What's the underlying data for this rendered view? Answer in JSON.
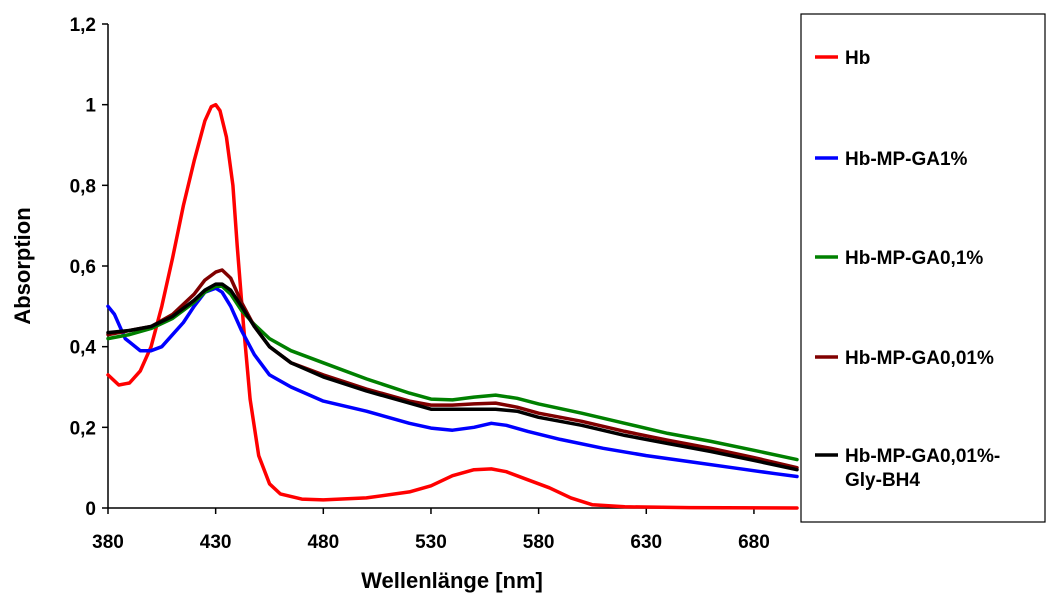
{
  "chart_data": {
    "type": "line",
    "xlabel": "Wellenlänge [nm]",
    "ylabel": "Absorption",
    "xlim": [
      380,
      700
    ],
    "ylim": [
      0,
      1.2
    ],
    "x_ticks": [
      380,
      430,
      480,
      530,
      580,
      630,
      680
    ],
    "y_ticks": [
      0,
      0.2,
      0.4,
      0.6,
      0.8,
      1,
      1.2
    ],
    "y_tick_labels": [
      "0",
      "0,2",
      "0,4",
      "0,6",
      "0,8",
      "1",
      "1,2"
    ],
    "grid": false,
    "legend": "right",
    "series": [
      {
        "name": "Hb",
        "color": "#ff0000",
        "points": [
          [
            380,
            0.33
          ],
          [
            385,
            0.305
          ],
          [
            390,
            0.31
          ],
          [
            395,
            0.34
          ],
          [
            400,
            0.4
          ],
          [
            405,
            0.5
          ],
          [
            410,
            0.62
          ],
          [
            415,
            0.75
          ],
          [
            420,
            0.86
          ],
          [
            425,
            0.96
          ],
          [
            428,
            0.995
          ],
          [
            430,
            1.0
          ],
          [
            432,
            0.985
          ],
          [
            435,
            0.92
          ],
          [
            438,
            0.8
          ],
          [
            440,
            0.65
          ],
          [
            443,
            0.45
          ],
          [
            446,
            0.27
          ],
          [
            450,
            0.13
          ],
          [
            455,
            0.06
          ],
          [
            460,
            0.035
          ],
          [
            470,
            0.022
          ],
          [
            480,
            0.02
          ],
          [
            500,
            0.025
          ],
          [
            520,
            0.04
          ],
          [
            530,
            0.055
          ],
          [
            540,
            0.08
          ],
          [
            550,
            0.095
          ],
          [
            558,
            0.097
          ],
          [
            565,
            0.09
          ],
          [
            575,
            0.07
          ],
          [
            585,
            0.05
          ],
          [
            595,
            0.025
          ],
          [
            605,
            0.008
          ],
          [
            620,
            0.003
          ],
          [
            650,
            0.001
          ],
          [
            700,
            0.0
          ]
        ]
      },
      {
        "name": "Hb-MP-GA1%",
        "color": "#0000ff",
        "points": [
          [
            380,
            0.5
          ],
          [
            383,
            0.48
          ],
          [
            388,
            0.42
          ],
          [
            395,
            0.39
          ],
          [
            400,
            0.39
          ],
          [
            405,
            0.4
          ],
          [
            410,
            0.43
          ],
          [
            415,
            0.46
          ],
          [
            420,
            0.5
          ],
          [
            425,
            0.535
          ],
          [
            430,
            0.545
          ],
          [
            433,
            0.535
          ],
          [
            437,
            0.5
          ],
          [
            442,
            0.44
          ],
          [
            448,
            0.38
          ],
          [
            455,
            0.33
          ],
          [
            465,
            0.3
          ],
          [
            480,
            0.265
          ],
          [
            500,
            0.24
          ],
          [
            520,
            0.21
          ],
          [
            530,
            0.198
          ],
          [
            540,
            0.193
          ],
          [
            550,
            0.2
          ],
          [
            558,
            0.21
          ],
          [
            565,
            0.205
          ],
          [
            575,
            0.19
          ],
          [
            590,
            0.17
          ],
          [
            610,
            0.148
          ],
          [
            630,
            0.13
          ],
          [
            650,
            0.115
          ],
          [
            670,
            0.1
          ],
          [
            690,
            0.085
          ],
          [
            700,
            0.078
          ]
        ]
      },
      {
        "name": "Hb-MP-GA0,1%",
        "color": "#008000",
        "points": [
          [
            380,
            0.42
          ],
          [
            390,
            0.43
          ],
          [
            400,
            0.445
          ],
          [
            410,
            0.47
          ],
          [
            420,
            0.51
          ],
          [
            425,
            0.535
          ],
          [
            430,
            0.55
          ],
          [
            433,
            0.55
          ],
          [
            437,
            0.53
          ],
          [
            442,
            0.49
          ],
          [
            448,
            0.455
          ],
          [
            455,
            0.42
          ],
          [
            465,
            0.39
          ],
          [
            480,
            0.36
          ],
          [
            500,
            0.32
          ],
          [
            520,
            0.285
          ],
          [
            530,
            0.27
          ],
          [
            540,
            0.268
          ],
          [
            550,
            0.275
          ],
          [
            560,
            0.28
          ],
          [
            570,
            0.272
          ],
          [
            580,
            0.258
          ],
          [
            600,
            0.235
          ],
          [
            620,
            0.21
          ],
          [
            640,
            0.185
          ],
          [
            660,
            0.165
          ],
          [
            680,
            0.143
          ],
          [
            700,
            0.12
          ]
        ]
      },
      {
        "name": "Hb-MP-GA0,01%",
        "color": "#800000",
        "points": [
          [
            380,
            0.43
          ],
          [
            390,
            0.44
          ],
          [
            400,
            0.45
          ],
          [
            410,
            0.48
          ],
          [
            420,
            0.53
          ],
          [
            425,
            0.565
          ],
          [
            430,
            0.585
          ],
          [
            433,
            0.59
          ],
          [
            437,
            0.57
          ],
          [
            442,
            0.51
          ],
          [
            448,
            0.45
          ],
          [
            455,
            0.4
          ],
          [
            465,
            0.36
          ],
          [
            480,
            0.33
          ],
          [
            500,
            0.295
          ],
          [
            520,
            0.265
          ],
          [
            530,
            0.255
          ],
          [
            540,
            0.255
          ],
          [
            550,
            0.258
          ],
          [
            560,
            0.26
          ],
          [
            570,
            0.25
          ],
          [
            580,
            0.235
          ],
          [
            600,
            0.215
          ],
          [
            620,
            0.19
          ],
          [
            640,
            0.168
          ],
          [
            660,
            0.148
          ],
          [
            680,
            0.125
          ],
          [
            700,
            0.1
          ]
        ]
      },
      {
        "name": "Hb-MP-GA0,01%-Gly-BH4",
        "name_lines": [
          "Hb-MP-GA0,01%-",
          "Gly-BH4"
        ],
        "color": "#000000",
        "points": [
          [
            380,
            0.435
          ],
          [
            390,
            0.44
          ],
          [
            400,
            0.45
          ],
          [
            410,
            0.475
          ],
          [
            420,
            0.515
          ],
          [
            425,
            0.54
          ],
          [
            430,
            0.555
          ],
          [
            433,
            0.555
          ],
          [
            437,
            0.54
          ],
          [
            442,
            0.5
          ],
          [
            448,
            0.45
          ],
          [
            455,
            0.4
          ],
          [
            465,
            0.36
          ],
          [
            480,
            0.325
          ],
          [
            500,
            0.29
          ],
          [
            520,
            0.26
          ],
          [
            530,
            0.245
          ],
          [
            540,
            0.245
          ],
          [
            550,
            0.245
          ],
          [
            560,
            0.245
          ],
          [
            570,
            0.24
          ],
          [
            580,
            0.225
          ],
          [
            600,
            0.205
          ],
          [
            620,
            0.18
          ],
          [
            640,
            0.16
          ],
          [
            660,
            0.14
          ],
          [
            680,
            0.118
          ],
          [
            700,
            0.095
          ]
        ]
      }
    ]
  }
}
